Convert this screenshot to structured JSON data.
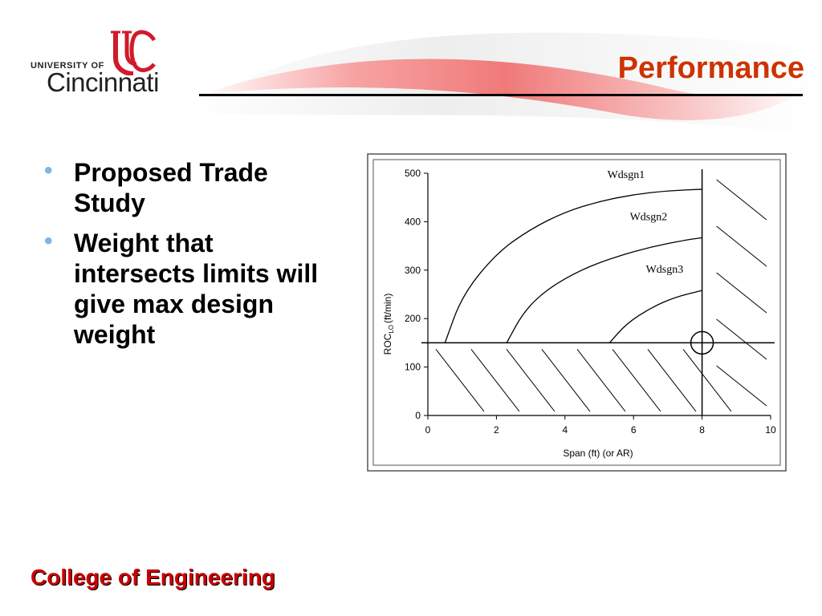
{
  "header": {
    "logo_university_of": "UNIVERSITY OF",
    "logo_cincinnati": "Cincinnati",
    "title": "Performance",
    "swoosh_color": "#e84a4a"
  },
  "bullets": [
    {
      "text": "Proposed Trade Study"
    },
    {
      "text": "Weight that intersects limits will give max design weight"
    }
  ],
  "footer": {
    "text": "College of Engineering"
  },
  "colors": {
    "title": "#cc3300",
    "footer": "#cc0000",
    "bullet": "#7fb6e6"
  },
  "chart_data": {
    "type": "line",
    "xlabel": "Span (ft) (or AR)",
    "ylabel": "ROC",
    "ylabel_subscript": "LO",
    "ylabel_units": "(ft/min)",
    "xlim": [
      0,
      10
    ],
    "ylim": [
      0,
      500
    ],
    "x_ticks": [
      0,
      2,
      4,
      6,
      8,
      10
    ],
    "y_ticks": [
      0,
      100,
      200,
      300,
      400,
      500
    ],
    "limits": {
      "span_max": 8,
      "roc_min": 150
    },
    "series": [
      {
        "name": "Wdsgn1",
        "x": [
          0.5,
          1.0,
          2.0,
          3.0,
          4.0,
          5.0,
          6.0,
          7.0,
          8.0
        ],
        "y": [
          150,
          248,
          335,
          385,
          420,
          442,
          456,
          464,
          467
        ]
      },
      {
        "name": "Wdsgn2",
        "x": [
          2.3,
          2.8,
          3.5,
          4.5,
          5.5,
          6.5,
          7.5,
          8.0
        ],
        "y": [
          150,
          215,
          262,
          302,
          328,
          348,
          362,
          367
        ]
      },
      {
        "name": "Wdsgn3",
        "x": [
          5.3,
          5.8,
          6.5,
          7.2,
          8.0
        ],
        "y": [
          150,
          190,
          222,
          244,
          258
        ]
      }
    ],
    "annotations": [
      {
        "type": "circle",
        "x": 8,
        "y": 150,
        "note": "intersection of limits"
      }
    ],
    "shaded_regions": [
      "roc below 150",
      "span above 8"
    ]
  }
}
